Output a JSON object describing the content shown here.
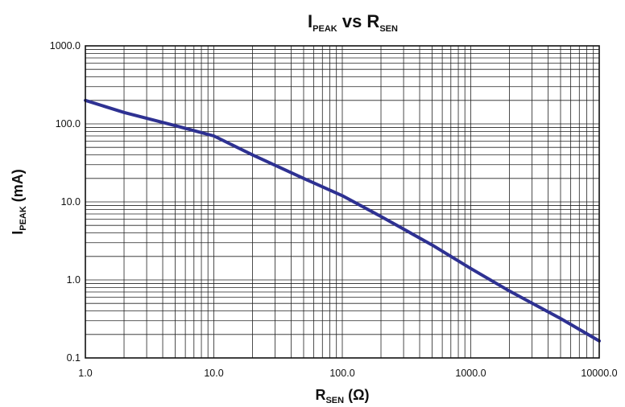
{
  "chart_data": {
    "type": "line",
    "title": {
      "main": "I",
      "sub1": "PEAK",
      "mid": " vs R",
      "sub2": "SEN"
    },
    "xlabel": {
      "main": "R",
      "sub": "SEN",
      "suffix": " (Ω)"
    },
    "ylabel": {
      "main": "I",
      "sub": "PEAK",
      "suffix": " (mA)"
    },
    "x_scale": "log",
    "y_scale": "log",
    "xlim": [
      1,
      10000
    ],
    "ylim": [
      0.1,
      1000
    ],
    "x_ticks": [
      "1.0",
      "10.0",
      "100.0",
      "1000.0",
      "10000.0"
    ],
    "y_ticks": [
      "0.1",
      "1.0",
      "10.0",
      "100.0",
      "1000.0"
    ],
    "grid": true,
    "series": [
      {
        "color": "#2e3192",
        "x": [
          1,
          2,
          5,
          10,
          20,
          50,
          100,
          200,
          500,
          1000,
          2000,
          5000,
          10000
        ],
        "y": [
          200,
          140,
          95,
          70,
          40,
          20,
          12,
          6.5,
          2.8,
          1.4,
          0.72,
          0.32,
          0.165
        ]
      }
    ]
  }
}
